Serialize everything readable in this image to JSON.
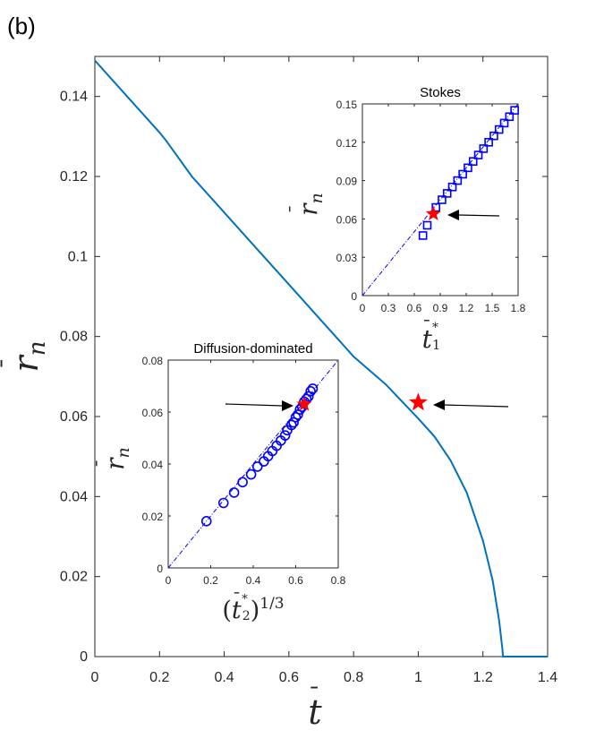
{
  "panel_label": "(b)",
  "chart_data": [
    {
      "type": "line",
      "name": "main",
      "xlabel": "t̄",
      "ylabel": "r̄n",
      "xlim": [
        0,
        1.4
      ],
      "ylim": [
        0,
        0.15
      ],
      "xticks": [
        "0",
        "0.2",
        "0.4",
        "0.6",
        "0.8",
        "1",
        "1.2",
        "1.4"
      ],
      "yticks": [
        "0",
        "0.02",
        "0.04",
        "0.06",
        "0.08",
        "0.1",
        "0.12",
        "0.14"
      ],
      "line_color": "#0072BD",
      "series": [
        {
          "x": [
            0,
            0.1,
            0.2,
            0.22,
            0.3,
            0.4,
            0.5,
            0.6,
            0.7,
            0.8,
            0.9,
            1.0,
            1.05,
            1.1,
            1.15,
            1.2,
            1.23,
            1.25,
            1.26,
            1.262,
            1.3,
            1.4
          ],
          "y": [
            0.149,
            0.14,
            0.131,
            0.129,
            0.12,
            0.111,
            0.102,
            0.093,
            0.084,
            0.075,
            0.068,
            0.0595,
            0.055,
            0.049,
            0.041,
            0.029,
            0.019,
            0.009,
            0.002,
            0,
            0,
            0
          ]
        }
      ],
      "marker": {
        "x": 1.0,
        "y": 0.0635,
        "shape": "star",
        "color": "#FF0000"
      }
    },
    {
      "type": "scatter",
      "name": "inset-stokes",
      "title": "Stokes",
      "xlabel": "t̄1*",
      "ylabel": "r̄n",
      "xlim": [
        0,
        1.8
      ],
      "ylim": [
        0,
        0.15
      ],
      "xticks": [
        "0",
        "0.3",
        "0.6",
        "0.9",
        "1.2",
        "1.5",
        "1.8"
      ],
      "yticks": [
        "0",
        "0.03",
        "0.06",
        "0.09",
        "0.12",
        "0.15"
      ],
      "marker_shape": "square",
      "marker_color": "#0000FF",
      "fit_line": {
        "x": [
          0,
          1.8
        ],
        "y": [
          0,
          0.15
        ]
      },
      "points_x": [
        0.7,
        0.75,
        0.85,
        0.92,
        0.98,
        1.04,
        1.1,
        1.16,
        1.22,
        1.28,
        1.34,
        1.4,
        1.46,
        1.52,
        1.58,
        1.64,
        1.7,
        1.76
      ],
      "points_y": [
        0.047,
        0.055,
        0.069,
        0.075,
        0.08,
        0.085,
        0.09,
        0.095,
        0.1,
        0.105,
        0.11,
        0.115,
        0.12,
        0.125,
        0.13,
        0.135,
        0.14,
        0.145
      ],
      "marker": {
        "x": 0.82,
        "y": 0.064,
        "shape": "star",
        "color": "#FF0000"
      }
    },
    {
      "type": "scatter",
      "name": "inset-diffusion",
      "title": "Diffusion-dominated",
      "xlabel": "(t̄2*)^1/3",
      "ylabel": "r̄n",
      "xlim": [
        0,
        0.8
      ],
      "ylim": [
        0,
        0.08
      ],
      "xticks": [
        "0",
        "0.2",
        "0.4",
        "0.6",
        "0.8"
      ],
      "yticks": [
        "0",
        "0.02",
        "0.04",
        "0.06",
        "0.08"
      ],
      "marker_shape": "circle",
      "marker_color": "#0000FF",
      "fit_line": {
        "x": [
          0,
          0.8
        ],
        "y": [
          0,
          0.08
        ]
      },
      "points_x": [
        0.18,
        0.26,
        0.31,
        0.35,
        0.39,
        0.42,
        0.45,
        0.47,
        0.49,
        0.51,
        0.53,
        0.55,
        0.56,
        0.58,
        0.59,
        0.6,
        0.61,
        0.62,
        0.63,
        0.64,
        0.65,
        0.66,
        0.67,
        0.68
      ],
      "points_y": [
        0.018,
        0.025,
        0.029,
        0.033,
        0.036,
        0.039,
        0.041,
        0.043,
        0.045,
        0.047,
        0.049,
        0.051,
        0.053,
        0.055,
        0.056,
        0.058,
        0.059,
        0.061,
        0.062,
        0.064,
        0.065,
        0.066,
        0.068,
        0.069
      ],
      "marker": {
        "x": 0.64,
        "y": 0.063,
        "shape": "star",
        "color": "#FF0000"
      }
    }
  ]
}
